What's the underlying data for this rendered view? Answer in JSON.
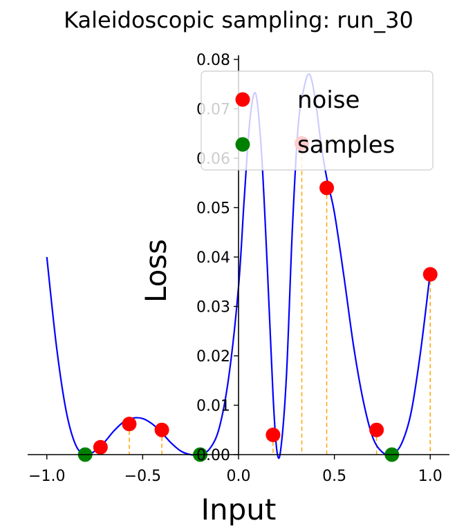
{
  "chart_data": {
    "type": "scatter",
    "title": "Kaleidoscopic sampling: run_30",
    "xlabel": "Input",
    "ylabel": "Loss",
    "xlim": [
      -1.1,
      1.1
    ],
    "ylim": [
      0,
      0.08
    ],
    "xticks": [
      -1.0,
      -0.5,
      0.0,
      0.5,
      1.0
    ],
    "xtick_labels": [
      "−1.0",
      "−0.5",
      "0.0",
      "0.5",
      "1.0"
    ],
    "yticks": [
      0.0,
      0.01,
      0.02,
      0.03,
      0.04,
      0.05,
      0.06,
      0.07,
      0.08
    ],
    "ytick_labels": [
      "0.00",
      "0.01",
      "0.02",
      "0.03",
      "0.04",
      "0.05",
      "0.06",
      "0.07",
      "0.08"
    ],
    "legend_position": "top-right",
    "grid": false,
    "curve": {
      "color": "#0000ff",
      "x": [
        -1.0,
        -0.95,
        -0.9,
        -0.85,
        -0.8,
        -0.75,
        -0.7,
        -0.65,
        -0.6,
        -0.55,
        -0.5,
        -0.45,
        -0.4,
        -0.35,
        -0.3,
        -0.25,
        -0.2,
        -0.15,
        -0.1,
        -0.05,
        0.0,
        0.03,
        0.06,
        0.09,
        0.12,
        0.15,
        0.18,
        0.2,
        0.22,
        0.25,
        0.28,
        0.31,
        0.34,
        0.37,
        0.4,
        0.43,
        0.46,
        0.5,
        0.55,
        0.6,
        0.65,
        0.7,
        0.75,
        0.8,
        0.85,
        0.9,
        0.95,
        1.0
      ],
      "y": [
        0.04,
        0.022,
        0.009,
        0.002,
        0.0,
        0.0007,
        0.0025,
        0.0048,
        0.0066,
        0.0074,
        0.0073,
        0.0062,
        0.0044,
        0.0023,
        0.0007,
        0.0,
        0.0001,
        0.0012,
        0.0055,
        0.016,
        0.034,
        0.052,
        0.068,
        0.073,
        0.061,
        0.038,
        0.012,
        0.0008,
        0.001,
        0.016,
        0.045,
        0.066,
        0.074,
        0.077,
        0.072,
        0.063,
        0.056,
        0.049,
        0.036,
        0.022,
        0.011,
        0.0035,
        0.0005,
        0.0,
        0.0022,
        0.0085,
        0.021,
        0.037
      ]
    },
    "series": [
      {
        "name": "noise",
        "color": "#ff0000",
        "x": [
          -0.72,
          -0.57,
          -0.4,
          0.18,
          0.33,
          0.46,
          0.72,
          1.0
        ],
        "y": [
          0.0015,
          0.0062,
          0.005,
          0.004,
          0.063,
          0.054,
          0.005,
          0.0365
        ]
      },
      {
        "name": "samples",
        "color": "#008000",
        "x": [
          -0.8,
          -0.2,
          0.8
        ],
        "y": [
          0.0,
          0.0,
          0.0
        ]
      }
    ],
    "guide_line_color": "#ffa500"
  }
}
